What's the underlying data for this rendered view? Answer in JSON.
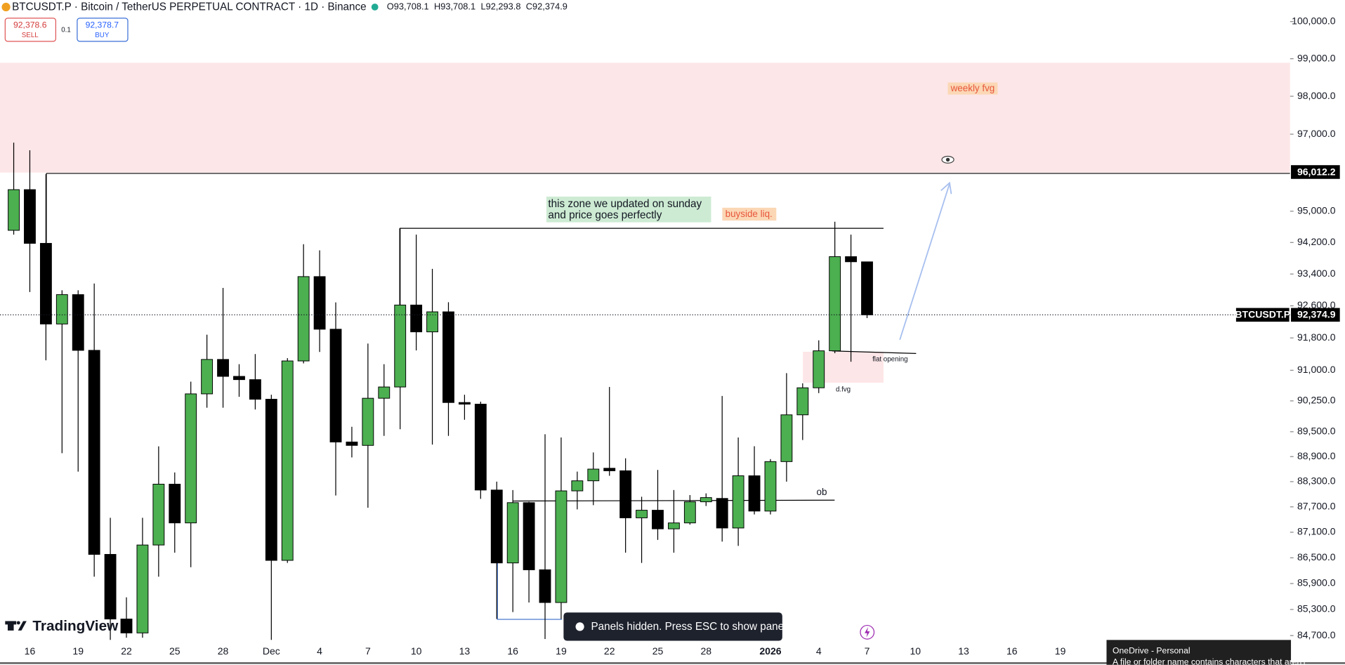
{
  "header": {
    "title": "BTCUSDT.P · Bitcoin / TetherUS PERPETUAL CONTRACT · 1D · Binance",
    "ohlc": [
      {
        "key": "O",
        "value": "93,708.1"
      },
      {
        "key": "H",
        "value": "93,708.1"
      },
      {
        "key": "L",
        "value": "92,293.8"
      },
      {
        "key": "C",
        "value": "92,374.9"
      }
    ],
    "sell_price": "92,378.6",
    "sell": "SELL",
    "quantity": "0.1",
    "buy_price": "92,378.7",
    "buy": "BUY"
  },
  "annotations": {
    "weekly_fvg": "weekly fvg",
    "zone_note": [
      "this zone we updated on sunday",
      "and price goes perfectly"
    ],
    "buyside": "buyside liq.",
    "flat_opening": "flat opening",
    "dfvg": "d.fvg",
    "ob": "ob"
  },
  "footer": {
    "brand": "TradingView",
    "toast": "Panels hidden. Press ESC to show panels.",
    "onedrive_title": "OneDrive - Personal",
    "onedrive_text": "A file or folder name contains characters that aren't"
  },
  "chart_data": {
    "type": "candlestick",
    "log_scale": true,
    "up_color": "#4caf50",
    "down_color": "#000000",
    "ylim": [
      84560,
      100580
    ],
    "yticks": [
      {
        "value": 100000,
        "label": "100,000.0"
      },
      {
        "value": 99000,
        "label": "99,000.0"
      },
      {
        "value": 98000,
        "label": "98,000.0"
      },
      {
        "value": 97000,
        "label": "97,000.0"
      },
      {
        "value": 95000,
        "label": "95,000.0"
      },
      {
        "value": 94200,
        "label": "94,200.0"
      },
      {
        "value": 93400,
        "label": "93,400.0"
      },
      {
        "value": 92600,
        "label": "92,600.0"
      },
      {
        "value": 91800,
        "label": "91,800.0"
      },
      {
        "value": 91000,
        "label": "91,000.0"
      },
      {
        "value": 90250,
        "label": "90,250.0"
      },
      {
        "value": 89500,
        "label": "89,500.0"
      },
      {
        "value": 88900,
        "label": "88,900.0"
      },
      {
        "value": 88300,
        "label": "88,300.0"
      },
      {
        "value": 87700,
        "label": "87,700.0"
      },
      {
        "value": 87100,
        "label": "87,100.0"
      },
      {
        "value": 86500,
        "label": "86,500.0"
      },
      {
        "value": 85900,
        "label": "85,900.0"
      },
      {
        "value": 85300,
        "label": "85,300.0"
      },
      {
        "value": 84700,
        "label": "84,700.0"
      }
    ],
    "level": {
      "value": 96012.2,
      "label": "96,012.2"
    },
    "symbol_label": "BTCUSDT.P",
    "last_price": {
      "value": 92374.9,
      "label": "92,374.9"
    },
    "categories": [
      null,
      "16",
      null,
      null,
      "19",
      null,
      null,
      "22",
      null,
      null,
      "25",
      null,
      null,
      "28",
      null,
      null,
      "Dec",
      null,
      null,
      "4",
      null,
      null,
      "7",
      null,
      null,
      "10",
      null,
      null,
      "13",
      null,
      null,
      "16",
      null,
      null,
      "19",
      null,
      null,
      "22",
      null,
      null,
      "25",
      null,
      null,
      "28",
      null,
      null,
      null,
      "2026",
      null,
      null,
      "4",
      null,
      null,
      "7",
      null,
      null,
      "10",
      null,
      null,
      "13",
      null,
      null,
      "16",
      null,
      null,
      "19"
    ],
    "open": [
      94510,
      95556,
      94178,
      92146,
      92881,
      91492,
      86580,
      85080,
      84760,
      86800,
      88240,
      87320,
      90421,
      91267,
      90850,
      90770,
      90290,
      86440,
      91230,
      93335,
      92016,
      89252,
      89170,
      90314,
      90590,
      92620,
      91950,
      92450,
      90210,
      90170,
      88100,
      86380,
      87800,
      86220,
      85460,
      88080,
      88320,
      88620,
      88560,
      87440,
      87620,
      87180,
      87320,
      87820,
      87900,
      87200,
      88440,
      87600,
      88780,
      89910,
      90570,
      91480,
      93840,
      93708.1,
      null,
      null,
      null,
      null,
      null,
      null,
      null,
      null,
      null,
      null,
      null,
      null
    ],
    "high": [
      96778,
      96578,
      95956,
      92990,
      92990,
      93160,
      87440,
      85580,
      87440,
      89148,
      88520,
      90720,
      91880,
      93050,
      91150,
      91400,
      90400,
      91300,
      94157,
      94000,
      92686,
      89620,
      91660,
      91150,
      94556,
      94400,
      93530,
      92690,
      90400,
      90230,
      88300,
      88100,
      87820,
      89440,
      89360,
      88540,
      89000,
      90590,
      88860,
      87940,
      88580,
      88100,
      87980,
      88020,
      90370,
      89360,
      89150,
      88840,
      90930,
      90680,
      91740,
      94730,
      94400,
      93708.1,
      null,
      null,
      null,
      null,
      null,
      null,
      null,
      null,
      null,
      null,
      null,
      null
    ],
    "low": [
      94400,
      92946,
      91246,
      88983,
      88540,
      86060,
      84600,
      84650,
      84650,
      86060,
      86620,
      86280,
      90083,
      90083,
      90350,
      90040,
      84600,
      86380,
      91170,
      91451,
      87970,
      88880,
      87680,
      89400,
      89560,
      91490,
      89190,
      89400,
      89790,
      87890,
      85080,
      85240,
      85460,
      84620,
      85080,
      87640,
      87740,
      88440,
      86620,
      86380,
      86920,
      86620,
      87280,
      87720,
      86880,
      86780,
      87520,
      87520,
      88300,
      89300,
      90440,
      91420,
      91210,
      92293.8,
      null,
      null,
      null,
      null,
      null,
      null,
      null,
      null,
      null,
      null,
      null,
      null
    ],
    "close": [
      95556,
      94178,
      92146,
      92881,
      91492,
      86580,
      85080,
      84760,
      86800,
      88240,
      87320,
      90421,
      91267,
      90850,
      90770,
      90290,
      86440,
      91230,
      93335,
      92016,
      89252,
      89170,
      90314,
      90590,
      92620,
      91950,
      92450,
      90210,
      90170,
      88100,
      86380,
      87800,
      86220,
      85460,
      88080,
      88320,
      88600,
      88560,
      87440,
      87620,
      87180,
      87320,
      87820,
      87920,
      87200,
      88440,
      87600,
      88780,
      89910,
      90570,
      91480,
      93840,
      93710,
      92374.9,
      null,
      null,
      null,
      null,
      null,
      null,
      null,
      null,
      null,
      null,
      null,
      null
    ]
  }
}
